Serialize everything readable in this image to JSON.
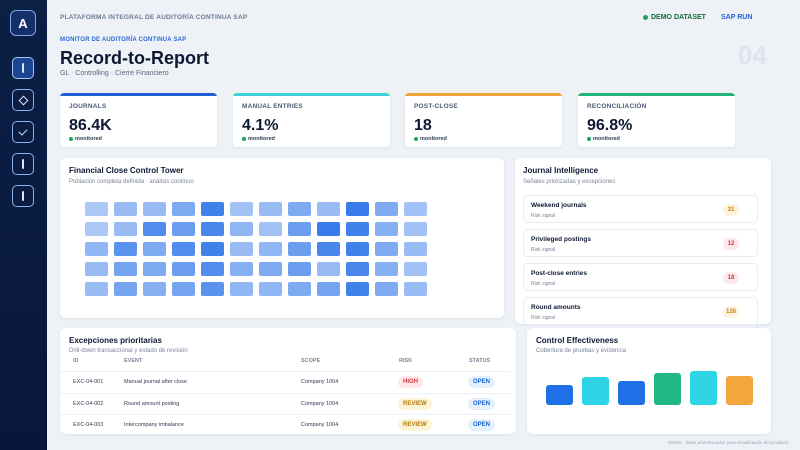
{
  "app": {
    "logo_letter": "A",
    "platform_label": "PLATAFORMA INTEGRAL DE AUDITORÍA CONTINUA SAP",
    "demo_label": "DEMO DATASET",
    "sap_run_label": "SAP RUN"
  },
  "header": {
    "monitor_label": "MONITOR DE AUDITORÍA CONTINUA SAP",
    "title": "Record-to-Report",
    "subtitle": "GL · Controlling · Cierre Financiero",
    "page_number": "04"
  },
  "sidebar": {
    "items": [
      {
        "icon": "bar-icon"
      },
      {
        "icon": "diamond-icon"
      },
      {
        "icon": "check-icon"
      },
      {
        "icon": "double-bar-icon"
      },
      {
        "icon": "double-bar-icon"
      }
    ]
  },
  "kpis": [
    {
      "label": "JOURNALS",
      "value": "86.4K",
      "status": "monitored",
      "accent": "#1f5fd6"
    },
    {
      "label": "MANUAL ENTRIES",
      "value": "4.1%",
      "status": "monitored",
      "accent": "#3dd1dc"
    },
    {
      "label": "POST-CLOSE",
      "value": "18",
      "status": "monitored",
      "accent": "#f0a33a"
    },
    {
      "label": "RECONCILIACIÓN",
      "value": "96.8%",
      "status": "monitored",
      "accent": "#1eb37a"
    }
  ],
  "tower": {
    "title": "Financial Close Control Tower",
    "subtitle": "Población completa definida · análisis continuo",
    "rows": 5,
    "cols": 12,
    "intensities": [
      [
        0.25,
        0.35,
        0.35,
        0.5,
        0.85,
        0.3,
        0.35,
        0.5,
        0.35,
        0.9,
        0.5,
        0.3
      ],
      [
        0.25,
        0.35,
        0.75,
        0.6,
        0.8,
        0.4,
        0.3,
        0.6,
        0.9,
        0.85,
        0.45,
        0.3
      ],
      [
        0.4,
        0.7,
        0.5,
        0.75,
        0.85,
        0.35,
        0.4,
        0.6,
        0.8,
        0.85,
        0.5,
        0.35
      ],
      [
        0.35,
        0.55,
        0.5,
        0.6,
        0.75,
        0.45,
        0.5,
        0.6,
        0.35,
        0.8,
        0.45,
        0.3
      ],
      [
        0.35,
        0.55,
        0.45,
        0.55,
        0.7,
        0.4,
        0.4,
        0.5,
        0.55,
        0.85,
        0.5,
        0.35
      ]
    ]
  },
  "journal_intel": {
    "title": "Journal Intelligence",
    "subtitle": "Señales priorizadas y excepciones",
    "items": [
      {
        "name": "Weekend journals",
        "signal": "Risk signal",
        "count": "31",
        "tone": "amber"
      },
      {
        "name": "Privileged postings",
        "signal": "Risk signal",
        "count": "12",
        "tone": "red"
      },
      {
        "name": "Post-close entries",
        "signal": "Risk signal",
        "count": "18",
        "tone": "red"
      },
      {
        "name": "Round amounts",
        "signal": "Risk signal",
        "count": "126",
        "tone": "amber"
      }
    ]
  },
  "exceptions": {
    "title": "Excepciones prioritarias",
    "subtitle": "Drill-down transaccional y estado de revisión",
    "columns": [
      "ID",
      "EVENT",
      "SCOPE",
      "RISK",
      "STATUS"
    ],
    "rows": [
      {
        "id": "EXC-04-001",
        "event": "Manual journal after close",
        "scope": "Company 1004",
        "risk": "HIGH",
        "status": "OPEN"
      },
      {
        "id": "EXC-04-002",
        "event": "Round amount posting",
        "scope": "Company 1004",
        "risk": "REVIEW",
        "status": "OPEN"
      },
      {
        "id": "EXC-04-003",
        "event": "Intercompany imbalance",
        "scope": "Company 1004",
        "risk": "REVIEW",
        "status": "OPEN"
      }
    ]
  },
  "effectiveness": {
    "title": "Control Effectiveness",
    "subtitle": "Cobertura de pruebas y evidencia",
    "bars": [
      {
        "level": 0.6,
        "color": "#1f6fe6"
      },
      {
        "level": 0.82,
        "color": "#2ed4e6"
      },
      {
        "level": 0.72,
        "color": "#1f6fe6"
      },
      {
        "level": 0.95,
        "color": "#22b585"
      },
      {
        "level": 1.0,
        "color": "#2ed4e6"
      },
      {
        "level": 0.85,
        "color": "#f2a63c"
      }
    ]
  },
  "footer": "DEMO · datos anonimizados para visualización del producto",
  "tones": {
    "amber": {
      "bg": "#fdf3df",
      "fg": "#c9820c"
    },
    "red": {
      "bg": "#fde8ea",
      "fg": "#d2384a"
    },
    "high": {
      "bg": "#fde8ea",
      "fg": "#d2384a"
    },
    "review": {
      "bg": "#fdf3d8",
      "fg": "#b77d07"
    },
    "open": {
      "bg": "#e4f1fd",
      "fg": "#1a64cf"
    }
  }
}
